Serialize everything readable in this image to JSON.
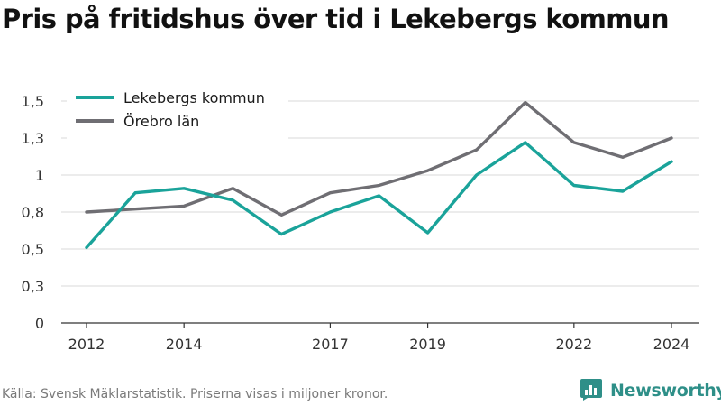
{
  "header": {
    "title": "Pris på fritidshus över tid i Lekebergs kommun"
  },
  "footer": {
    "source": "Källa: Svensk Mäklarstatistik. Priserna visas i miljoner kronor."
  },
  "brand": {
    "name": "Newsworthy",
    "icon": "newsworthy-logo-icon",
    "color": "#2e8f88"
  },
  "chart_data": {
    "type": "line",
    "title": "Pris på fritidshus över tid i Lekebergs kommun",
    "xlabel": "",
    "ylabel": "",
    "x": [
      2012,
      2013,
      2014,
      2015,
      2016,
      2017,
      2018,
      2019,
      2020,
      2021,
      2022,
      2023,
      2024
    ],
    "x_tick_values": [
      2012,
      2014,
      2017,
      2019,
      2022,
      2024
    ],
    "x_tick_labels": [
      "2012",
      "2014",
      "2017",
      "2019",
      "2022",
      "2024"
    ],
    "y_ticks": [
      0,
      0.25,
      0.5,
      0.75,
      1,
      1.25,
      1.5
    ],
    "y_tick_labels": [
      "0",
      "0,3",
      "0,5",
      "0,8",
      "1",
      "1,3",
      "1,5"
    ],
    "ylim": [
      0,
      1.5
    ],
    "grid": true,
    "legend": "top-left",
    "series": [
      {
        "name": "Lekebergs kommun",
        "color": "#1aa39a",
        "values": [
          0.51,
          0.88,
          0.91,
          0.83,
          0.6,
          0.75,
          0.86,
          0.61,
          1.0,
          1.22,
          0.93,
          0.89,
          1.09
        ]
      },
      {
        "name": "Örebro län",
        "color": "#6f6e73",
        "values": [
          0.75,
          0.77,
          0.79,
          0.91,
          0.73,
          0.88,
          0.93,
          1.03,
          1.17,
          1.49,
          1.22,
          1.12,
          1.25
        ]
      }
    ]
  }
}
